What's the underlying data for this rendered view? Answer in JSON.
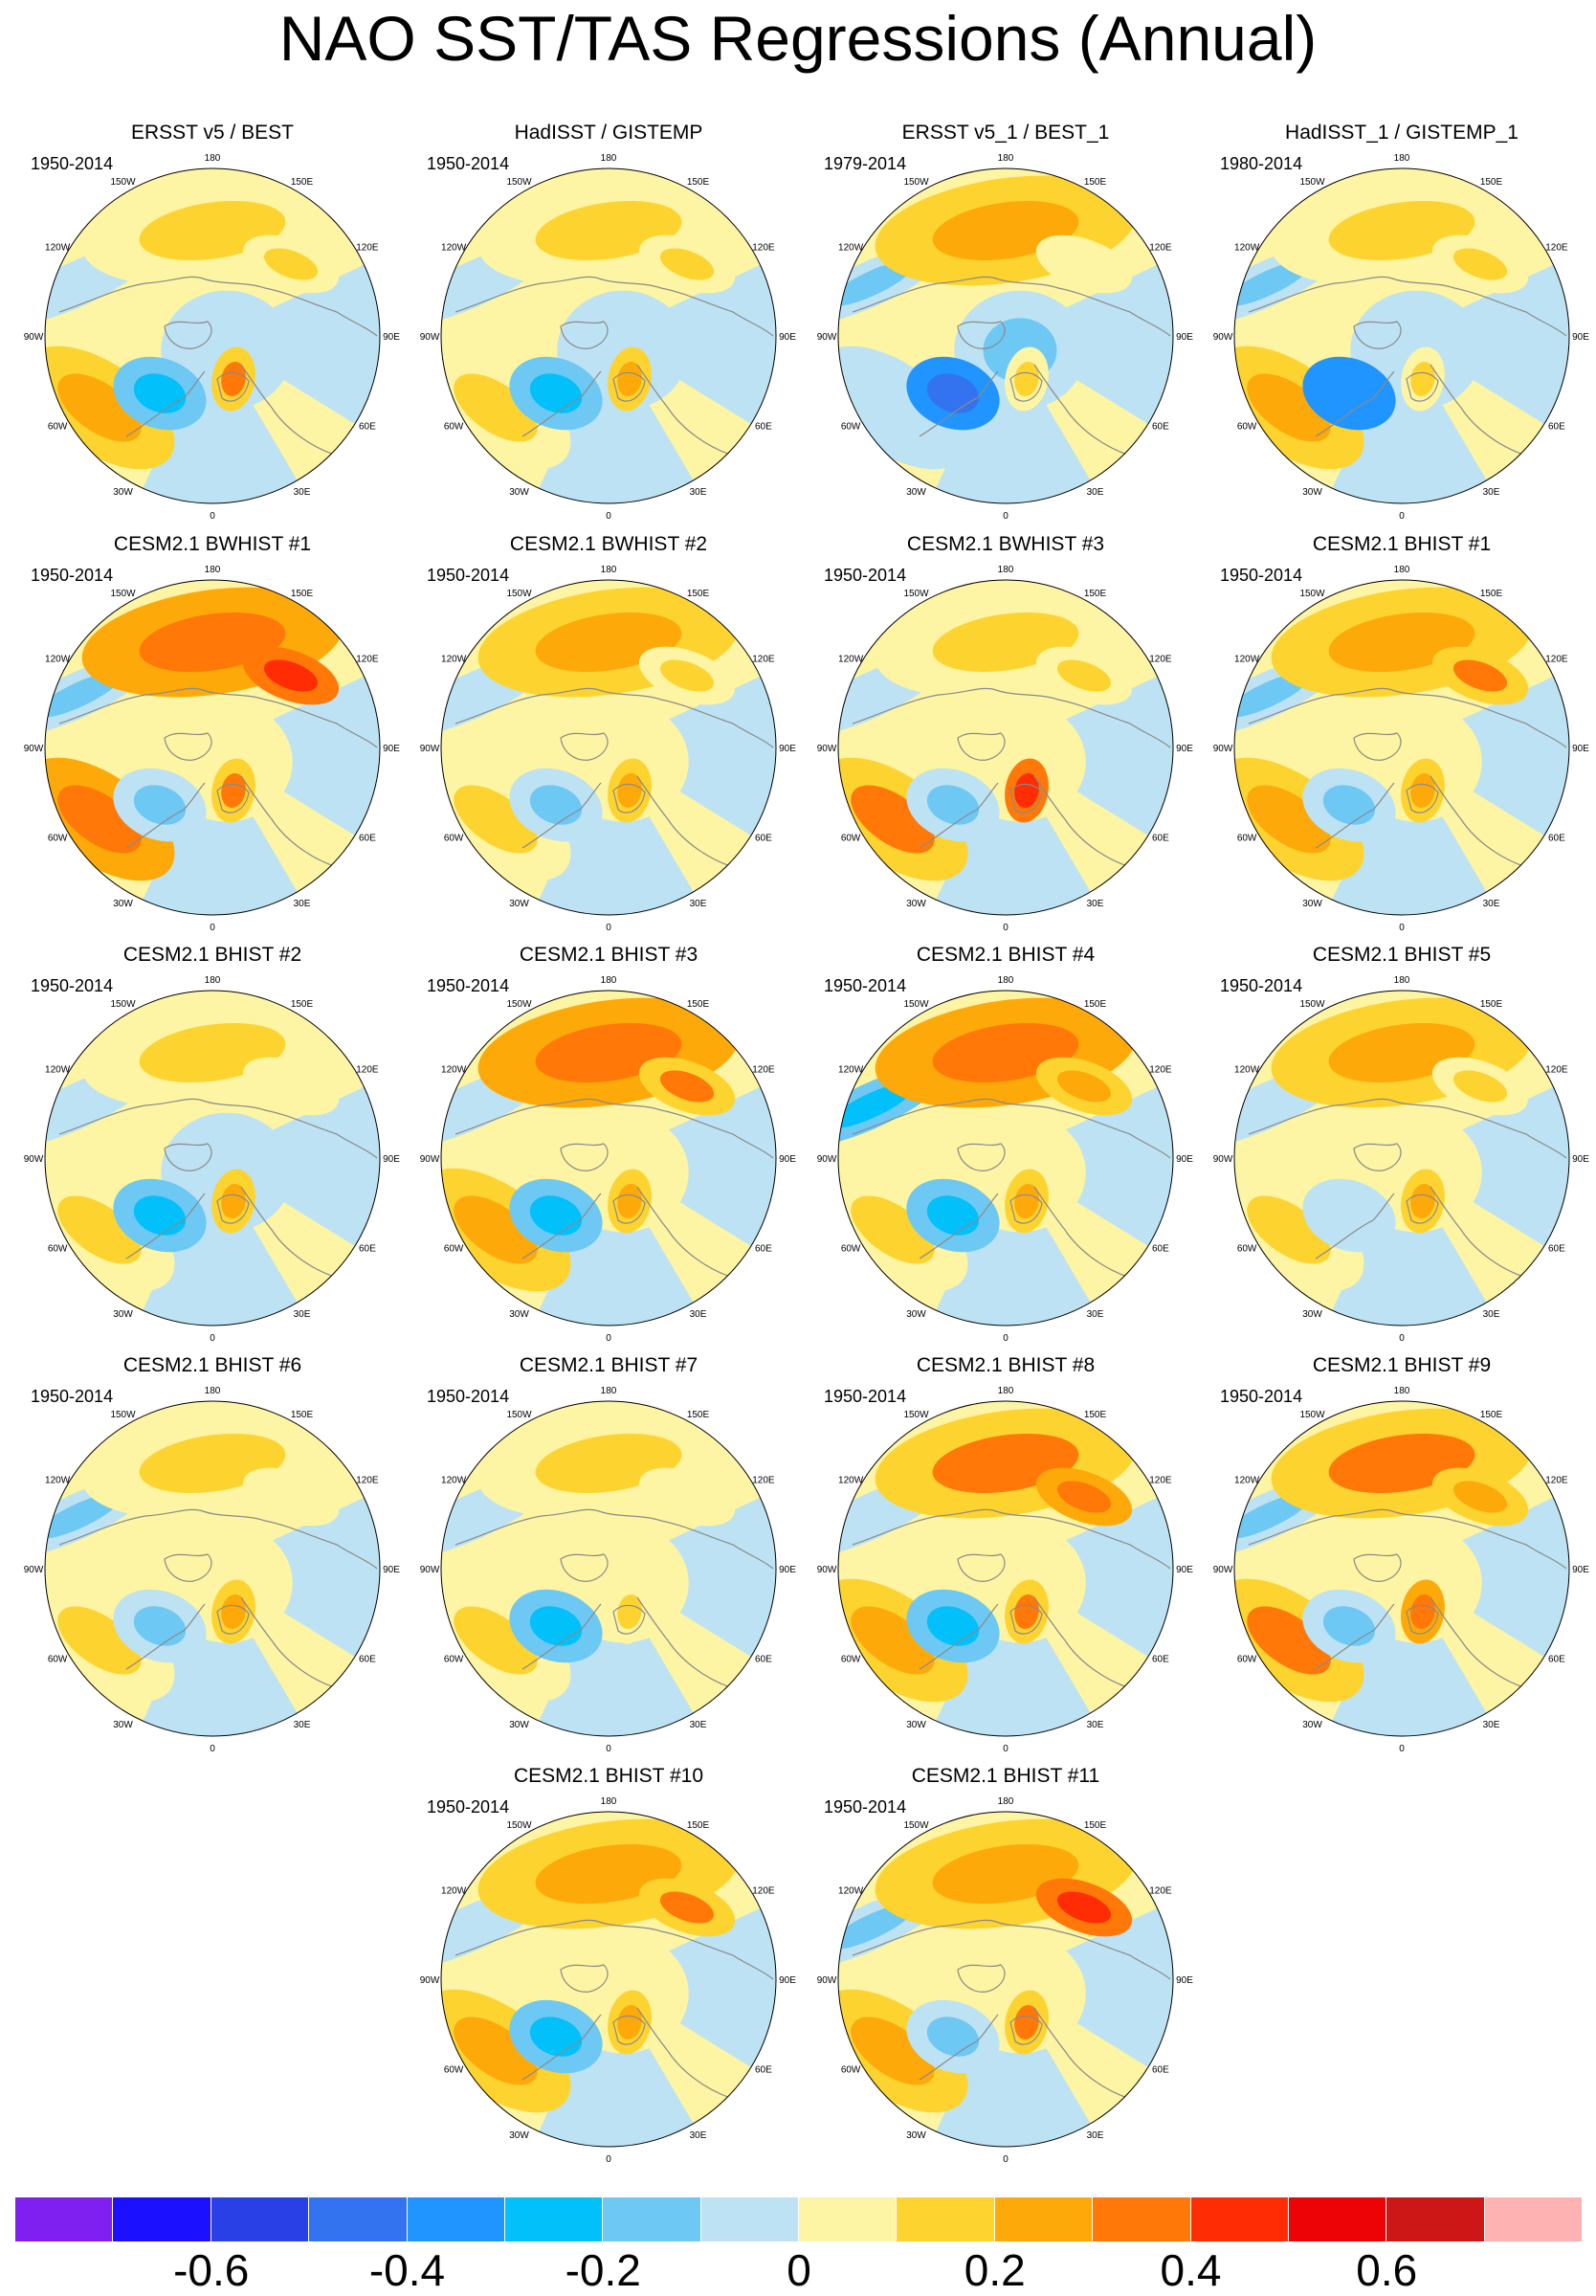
{
  "title": "NAO SST/TAS Regressions (Annual)",
  "lon_labels": [
    "180",
    "150E",
    "120E",
    "90E",
    "60E",
    "30E",
    "0",
    "30W",
    "60W",
    "90W",
    "120W",
    "150W"
  ],
  "chart_data": {
    "type": "heatmap",
    "projection": "north-polar-stereographic",
    "variable": "NAO regression of SST/TAS",
    "colorbar": {
      "colors": [
        "#7f1ff0",
        "#1b10ff",
        "#2940e6",
        "#3473ef",
        "#2094ff",
        "#02c0fa",
        "#6ec8f4",
        "#bde2f3",
        "#fdf5a3",
        "#fdd330",
        "#fda909",
        "#ff7808",
        "#ff2c04",
        "#ed0205",
        "#cd1717",
        "#feb2b2"
      ],
      "tick_labels": [
        "-0.6",
        "-0.4",
        "-0.2",
        "0",
        "0.2",
        "0.4",
        "0.6"
      ],
      "tick_values": [
        -0.6,
        -0.4,
        -0.2,
        0,
        0.2,
        0.4,
        0.6
      ],
      "levels": [
        -0.7,
        -0.6,
        -0.5,
        -0.4,
        -0.3,
        -0.2,
        -0.1,
        0,
        0.1,
        0.2,
        0.3,
        0.4,
        0.5,
        0.6,
        0.7
      ]
    },
    "panels": [
      {
        "title": "ERSST v5 / BEST",
        "years": "1950-2014",
        "features": {
          "npac": 0.18,
          "natl": 0.2,
          "labr": -0.3,
          "ward": -0.1,
          "siberia": 0.15,
          "arctic": -0.1,
          "scand": 0.3
        }
      },
      {
        "title": "HadISST / GISTEMP",
        "years": "1950-2014",
        "features": {
          "npac": 0.12,
          "natl": 0.15,
          "labr": -0.3,
          "ward": -0.1,
          "siberia": 0.12,
          "arctic": -0.1,
          "scand": 0.2
        }
      },
      {
        "title": "ERSST v5_1 / BEST_1",
        "years": "1979-2014",
        "features": {
          "npac": 0.2,
          "natl": -0.1,
          "labr": -0.45,
          "ward": -0.15,
          "siberia": 0.05,
          "arctic": -0.15,
          "scand": 0.15
        }
      },
      {
        "title": "HadISST_1 / GISTEMP_1",
        "years": "1980-2014",
        "features": {
          "npac": 0.15,
          "natl": 0.2,
          "labr": -0.4,
          "ward": -0.15,
          "siberia": 0.1,
          "arctic": -0.1,
          "scand": 0.15
        }
      },
      {
        "title": "CESM2.1 BWHIST #1",
        "years": "1950-2014",
        "features": {
          "npac": 0.35,
          "natl": 0.35,
          "labr": -0.2,
          "ward": -0.2,
          "siberia": 0.45,
          "arctic": 0.05,
          "scand": 0.3
        }
      },
      {
        "title": "CESM2.1 BWHIST #2",
        "years": "1950-2014",
        "features": {
          "npac": 0.2,
          "natl": 0.15,
          "labr": -0.2,
          "ward": -0.1,
          "siberia": 0.15,
          "arctic": 0.05,
          "scand": 0.2
        }
      },
      {
        "title": "CESM2.1 BWHIST #3",
        "years": "1950-2014",
        "features": {
          "npac": 0.12,
          "natl": 0.3,
          "labr": -0.15,
          "ward": -0.1,
          "siberia": 0.1,
          "arctic": 0.05,
          "scand": 0.4
        }
      },
      {
        "title": "CESM2.1 BHIST #1",
        "years": "1950-2014",
        "features": {
          "npac": 0.25,
          "natl": 0.2,
          "labr": -0.2,
          "ward": -0.2,
          "siberia": 0.3,
          "arctic": 0.05,
          "scand": 0.25
        }
      },
      {
        "title": "CESM2.1 BHIST #2",
        "years": "1950-2014",
        "features": {
          "npac": 0.1,
          "natl": 0.15,
          "labr": -0.25,
          "ward": -0.1,
          "siberia": 0.05,
          "arctic": -0.05,
          "scand": 0.25
        }
      },
      {
        "title": "CESM2.1 BHIST #3",
        "years": "1950-2014",
        "features": {
          "npac": 0.35,
          "natl": 0.25,
          "labr": -0.25,
          "ward": -0.1,
          "siberia": 0.3,
          "arctic": 0.05,
          "scand": 0.2
        }
      },
      {
        "title": "CESM2.1 BHIST #4",
        "years": "1950-2014",
        "features": {
          "npac": 0.35,
          "natl": 0.12,
          "labr": -0.25,
          "ward": -0.25,
          "siberia": 0.25,
          "arctic": 0.05,
          "scand": 0.2
        }
      },
      {
        "title": "CESM2.1 BHIST #5",
        "years": "1950-2014",
        "features": {
          "npac": 0.2,
          "natl": 0.15,
          "labr": -0.1,
          "ward": -0.1,
          "siberia": 0.15,
          "arctic": 0.05,
          "scand": 0.2
        }
      },
      {
        "title": "CESM2.1 BHIST #6",
        "years": "1950-2014",
        "features": {
          "npac": 0.1,
          "natl": 0.12,
          "labr": -0.15,
          "ward": -0.15,
          "siberia": 0.05,
          "arctic": 0.05,
          "scand": 0.2
        }
      },
      {
        "title": "CESM2.1 BHIST #7",
        "years": "1950-2014",
        "features": {
          "npac": 0.1,
          "natl": 0.12,
          "labr": -0.25,
          "ward": -0.1,
          "siberia": 0.05,
          "arctic": 0.05,
          "scand": 0.15
        }
      },
      {
        "title": "CESM2.1 BHIST #8",
        "years": "1950-2014",
        "features": {
          "npac": 0.3,
          "natl": 0.25,
          "labr": -0.25,
          "ward": -0.1,
          "siberia": 0.35,
          "arctic": 0.05,
          "scand": 0.3
        }
      },
      {
        "title": "CESM2.1 BHIST #9",
        "years": "1950-2014",
        "features": {
          "npac": 0.3,
          "natl": 0.3,
          "labr": -0.2,
          "ward": -0.2,
          "siberia": 0.25,
          "arctic": 0.05,
          "scand": 0.35
        }
      },
      {
        "title": "CESM2.1 BHIST #10",
        "years": "1950-2014",
        "features": {
          "npac": 0.2,
          "natl": 0.2,
          "labr": -0.25,
          "ward": -0.1,
          "siberia": 0.3,
          "arctic": 0.05,
          "scand": 0.25
        }
      },
      {
        "title": "CESM2.1 BHIST #11",
        "years": "1950-2014",
        "features": {
          "npac": 0.2,
          "natl": 0.25,
          "labr": -0.15,
          "ward": -0.15,
          "siberia": 0.4,
          "arctic": 0.05,
          "scand": 0.3
        }
      }
    ]
  }
}
